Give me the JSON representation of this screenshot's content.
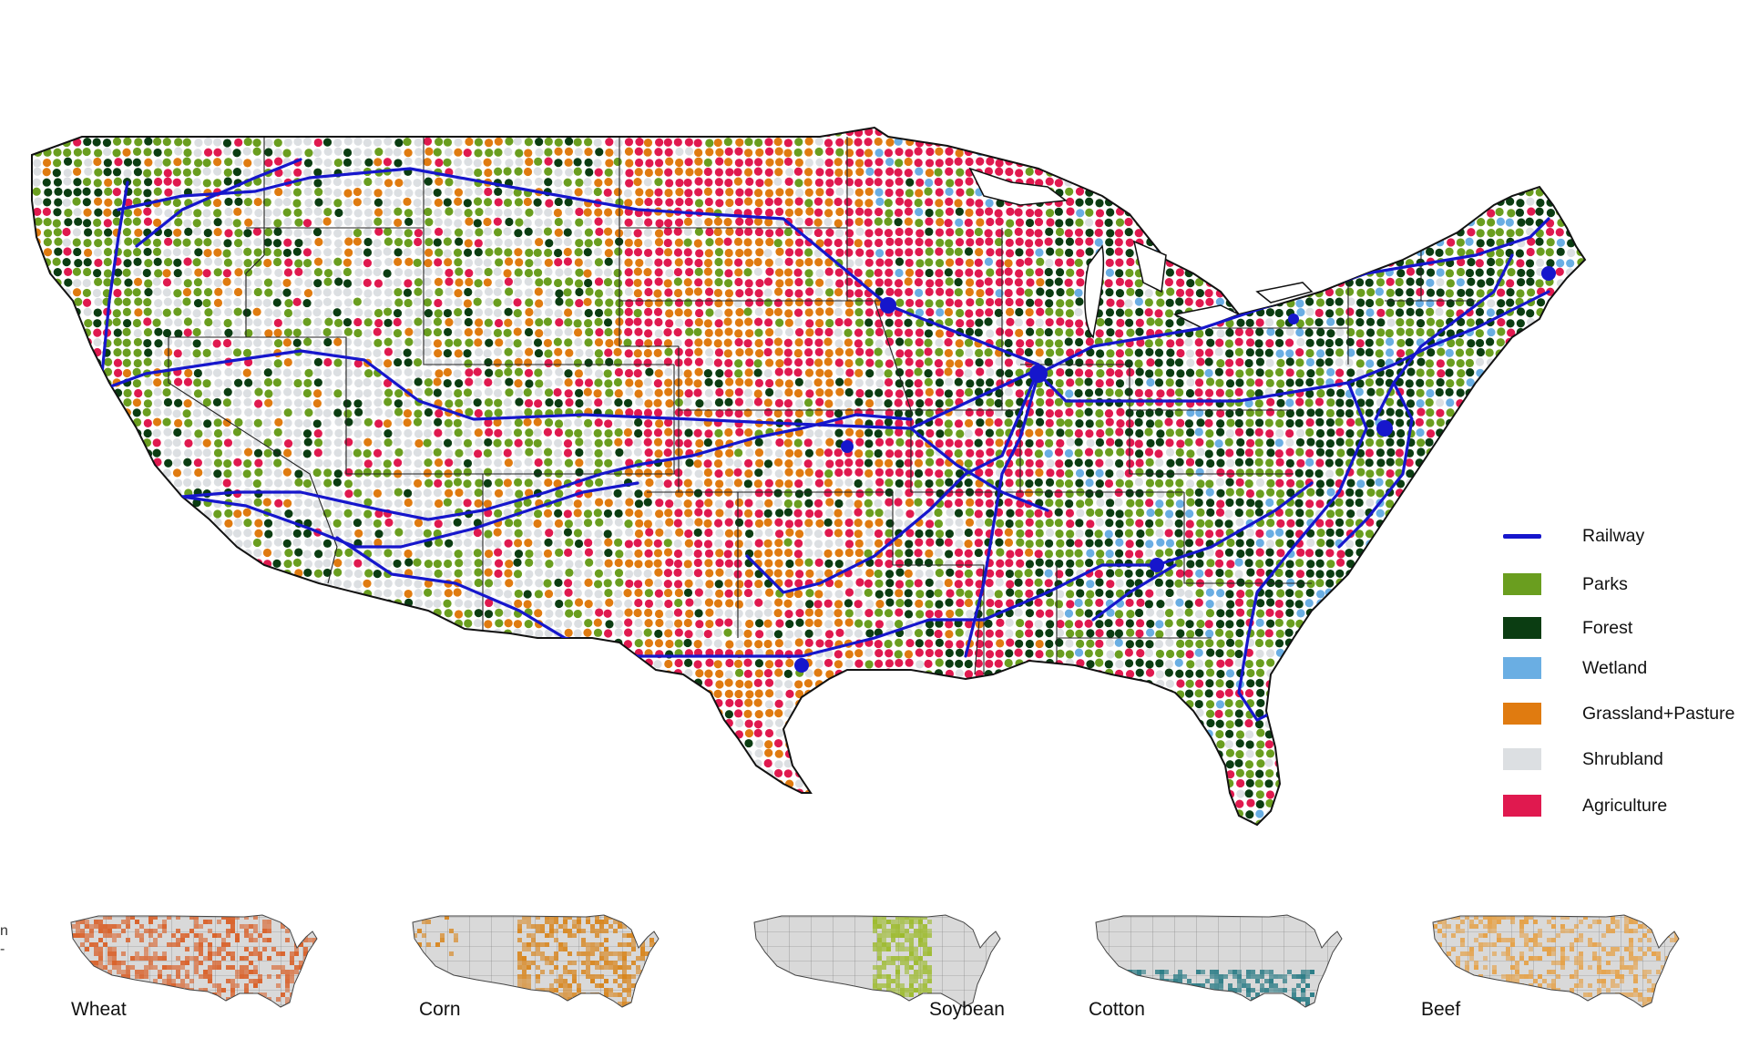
{
  "map": {
    "layers": [
      {
        "key": "parks",
        "color": "#6a9e1f"
      },
      {
        "key": "forest",
        "color": "#0b3d12"
      },
      {
        "key": "wetland",
        "color": "#6aaee3"
      },
      {
        "key": "grassland",
        "color": "#e07b10"
      },
      {
        "key": "shrubland",
        "color": "#dcdfe2"
      },
      {
        "key": "agriculture",
        "color": "#e0194f"
      }
    ],
    "railway_color": "#1616cc",
    "border_color": "#222222"
  },
  "legend": {
    "items": [
      {
        "label": "Railway",
        "color": "#1616cc",
        "kind": "line"
      },
      {
        "label": "Parks",
        "color": "#6a9e1f",
        "kind": "box"
      },
      {
        "label": "Forest",
        "color": "#0b3d12",
        "kind": "box"
      },
      {
        "label": "Wetland",
        "color": "#6aaee3",
        "kind": "box"
      },
      {
        "label": "Grassland+Pasture",
        "color": "#e07b10",
        "kind": "box"
      },
      {
        "label": "Shrubland",
        "color": "#dcdfe2",
        "kind": "box"
      },
      {
        "label": "Agriculture",
        "color": "#e0194f",
        "kind": "box"
      }
    ]
  },
  "minimaps": [
    {
      "label": "Wheat",
      "color": "#d9622b"
    },
    {
      "label": "Corn",
      "color": "#d8861f"
    },
    {
      "label": "Soybean",
      "color": "#9dbb2e"
    },
    {
      "label": "Cotton",
      "color": "#2b7c86"
    },
    {
      "label": "Beef",
      "color": "#e5a24a"
    }
  ],
  "edge_text": [
    "n",
    "-"
  ]
}
